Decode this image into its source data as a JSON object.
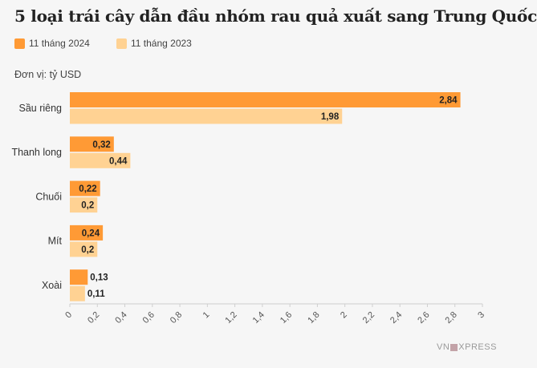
{
  "chart_data": {
    "type": "bar",
    "orientation": "horizontal",
    "title": "5 loại trái cây dẫn đầu nhóm rau quả xuất sang Trung Quốc",
    "unit_label": "Đơn vị: tỷ USD",
    "categories": [
      "Sầu riêng",
      "Thanh long",
      "Chuối",
      "Mít",
      "Xoài"
    ],
    "series": [
      {
        "name": "11 tháng 2024",
        "color": "#ff9a35",
        "values": [
          2.84,
          0.32,
          0.22,
          0.24,
          0.13
        ],
        "labels": [
          "2,84",
          "0,32",
          "0,22",
          "0,24",
          "0,13"
        ]
      },
      {
        "name": "11 tháng 2023",
        "color": "#ffd293",
        "values": [
          1.98,
          0.44,
          0.2,
          0.2,
          0.11
        ],
        "labels": [
          "1,98",
          "0,44",
          "0,2",
          "0,2",
          "0,11"
        ]
      }
    ],
    "xlim": [
      0,
      3
    ],
    "xticks": [
      0,
      0.2,
      0.4,
      0.6,
      0.8,
      1,
      1.2,
      1.4,
      1.6,
      1.8,
      2,
      2.2,
      2.4,
      2.6,
      2.8,
      3
    ],
    "xtick_labels": [
      "0",
      "0,2",
      "0,4",
      "0,6",
      "0,8",
      "1",
      "1,2",
      "1,4",
      "1,6",
      "1,8",
      "2",
      "2,2",
      "2,4",
      "2,6",
      "2,8",
      "3"
    ],
    "grid": false,
    "legend_position": "top-left"
  },
  "brand": {
    "left": "VN",
    "right": "XPRESS"
  }
}
